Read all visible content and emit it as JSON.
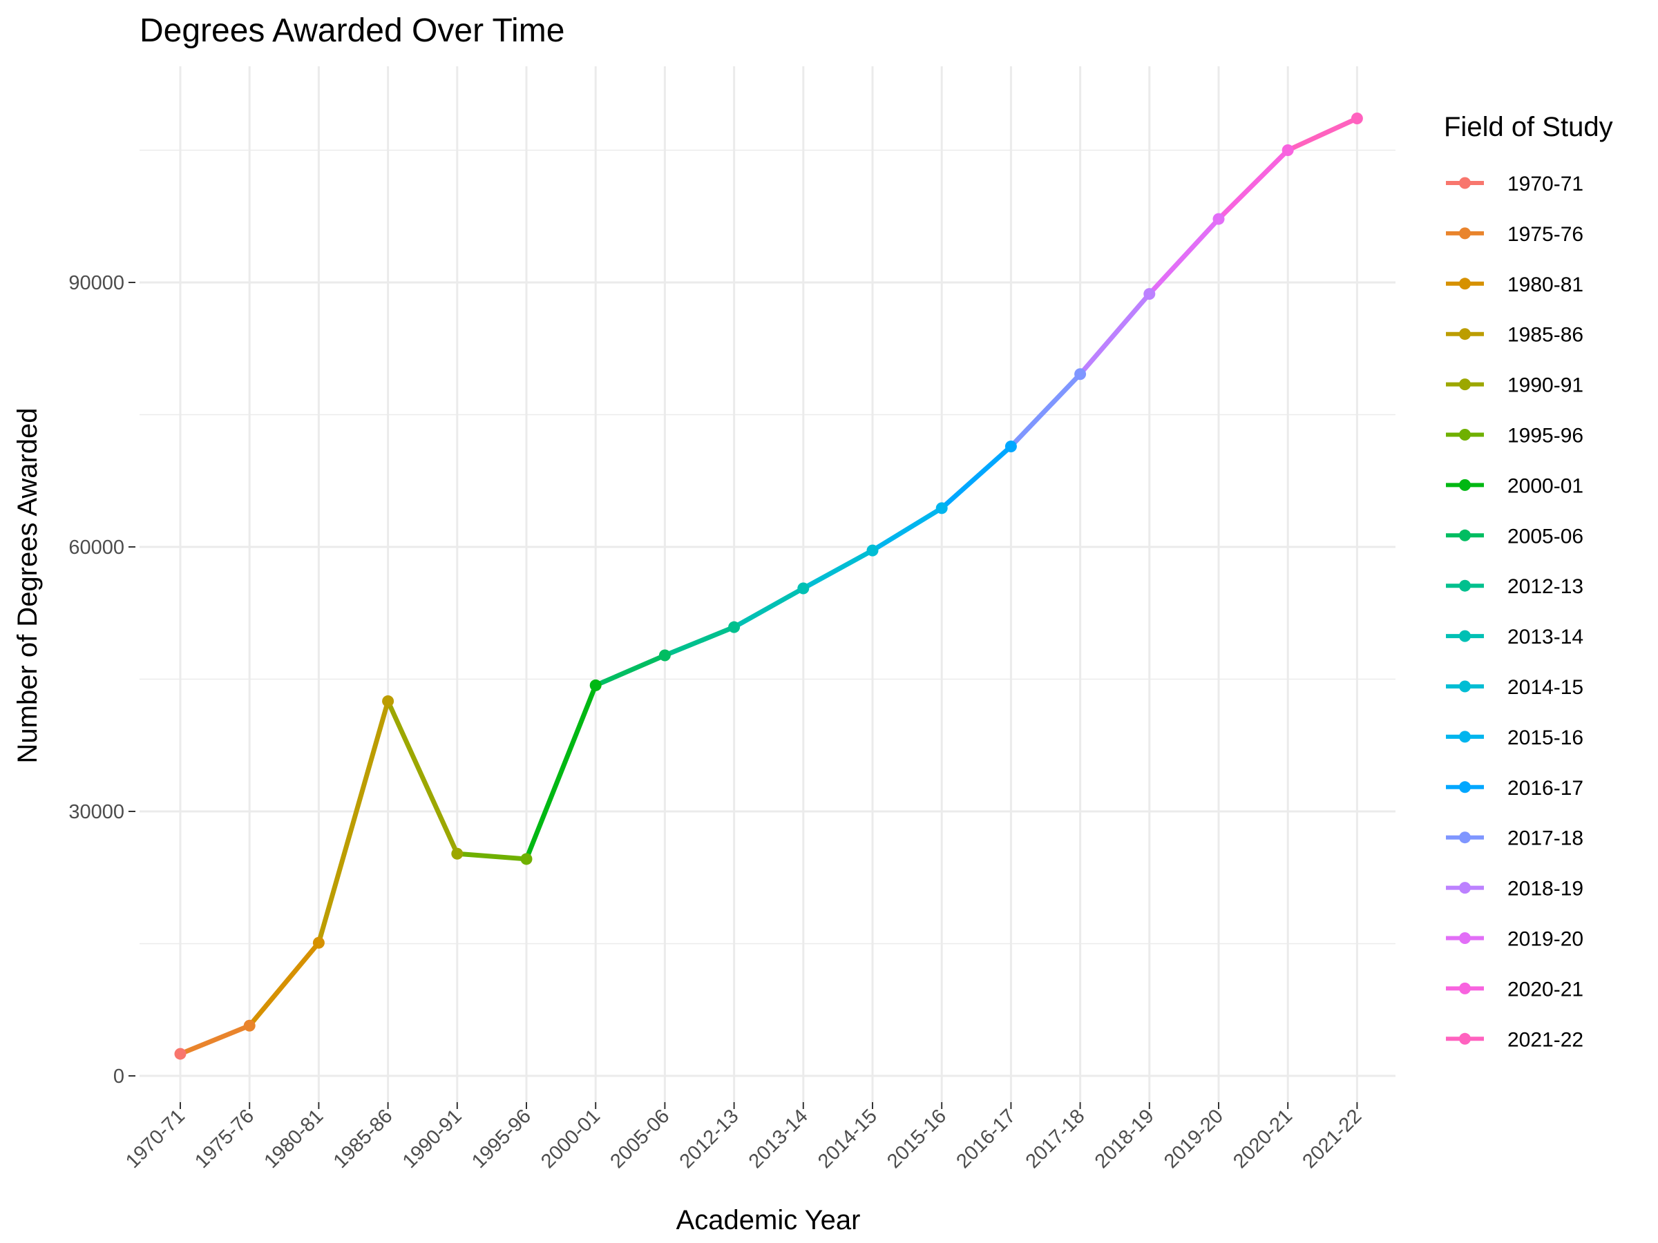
{
  "chart_data": {
    "type": "line",
    "title": "Degrees Awarded Over Time",
    "xlabel": "Academic Year",
    "ylabel": "Number of Degrees Awarded",
    "categories": [
      "1970-71",
      "1975-76",
      "1980-81",
      "1985-86",
      "1990-91",
      "1995-96",
      "2000-01",
      "2005-06",
      "2012-13",
      "2013-14",
      "2014-15",
      "2015-16",
      "2016-17",
      "2017-18",
      "2018-19",
      "2019-20",
      "2020-21",
      "2021-22"
    ],
    "values": [
      2500,
      5700,
      15100,
      42500,
      25200,
      24600,
      44300,
      47700,
      50900,
      55300,
      59600,
      64400,
      71400,
      79600,
      88700,
      97200,
      105000,
      108600
    ],
    "ylim": [
      -2500,
      114500
    ],
    "yticks": [
      0,
      30000,
      60000,
      90000
    ],
    "ytick_labels": [
      "0",
      "30000",
      "60000",
      "90000"
    ],
    "grid": true,
    "legend": {
      "title": "Field of Study",
      "placement": "right",
      "entries": [
        "1970-71",
        "1975-76",
        "1980-81",
        "1985-86",
        "1990-91",
        "1995-96",
        "2000-01",
        "2005-06",
        "2012-13",
        "2013-14",
        "2014-15",
        "2015-16",
        "2016-17",
        "2017-18",
        "2018-19",
        "2019-20",
        "2020-21",
        "2021-22"
      ]
    },
    "colors": [
      "#F8766D",
      "#E9842C",
      "#D69100",
      "#BC9D00",
      "#9CA700",
      "#6FB000",
      "#00B813",
      "#00BD61",
      "#00C08E",
      "#00C0B4",
      "#00BDD4",
      "#00B5EE",
      "#00A7FF",
      "#7F96FF",
      "#BC81FF",
      "#E26EF7",
      "#F863DF",
      "#FF62BF"
    ]
  }
}
